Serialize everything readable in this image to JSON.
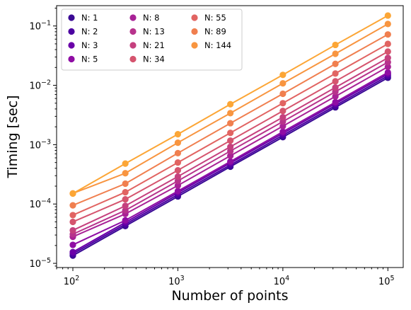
{
  "chart_data": {
    "type": "line",
    "title": "",
    "xlabel": "Number of points",
    "ylabel": "Timing [sec]",
    "xscale": "log",
    "yscale": "log",
    "xlim": [
      70,
      140000
    ],
    "ylim": [
      8.5e-06,
      0.22
    ],
    "grid": false,
    "legend_position": "top-left",
    "legend_columns": 3,
    "x": [
      100,
      316,
      1000,
      3162,
      10000,
      31623,
      100000
    ],
    "x_ticks": [
      {
        "value": 100,
        "base": "10",
        "exp": "2"
      },
      {
        "value": 1000,
        "base": "10",
        "exp": "3"
      },
      {
        "value": 10000,
        "base": "10",
        "exp": "4"
      },
      {
        "value": 100000,
        "base": "10",
        "exp": "5"
      }
    ],
    "y_ticks": [
      {
        "value": 1e-05,
        "base": "10",
        "exp": "−5"
      },
      {
        "value": 0.0001,
        "base": "10",
        "exp": "−4"
      },
      {
        "value": 0.001,
        "base": "10",
        "exp": "−3"
      },
      {
        "value": 0.01,
        "base": "10",
        "exp": "−2"
      },
      {
        "value": 0.1,
        "base": "10",
        "exp": "−1"
      }
    ],
    "series": [
      {
        "name": "N: 1",
        "color": "#3a0a94",
        "values": [
          1.35e-05,
          4.25e-05,
          0.000134,
          0.000425,
          0.00134,
          0.00425,
          0.0134
        ]
      },
      {
        "name": "N: 2",
        "color": "#4c02a1",
        "values": [
          1.45e-05,
          4.55e-05,
          0.000144,
          0.000455,
          0.00144,
          0.00455,
          0.0144
        ]
      },
      {
        "name": "N: 3",
        "color": "#6a00a8",
        "values": [
          1.55e-05,
          4.9e-05,
          0.000155,
          0.00049,
          0.00155,
          0.0049,
          0.0155
        ]
      },
      {
        "name": "N: 5",
        "color": "#8f0da4",
        "values": [
          2.05e-05,
          5.3e-05,
          0.000165,
          0.00052,
          0.00165,
          0.0052,
          0.0165
        ]
      },
      {
        "name": "N: 8",
        "color": "#a82296",
        "values": [
          2.8e-05,
          6.8e-05,
          0.000205,
          0.00065,
          0.00205,
          0.0065,
          0.0205
        ]
      },
      {
        "name": "N: 13",
        "color": "#b7338c",
        "values": [
          3.1e-05,
          7.8e-05,
          0.000245,
          0.00078,
          0.00245,
          0.0078,
          0.0245
        ]
      },
      {
        "name": "N: 21",
        "color": "#c5407e",
        "values": [
          3.6e-05,
          9.3e-05,
          0.00029,
          0.00092,
          0.0029,
          0.0092,
          0.029
        ]
      },
      {
        "name": "N: 34",
        "color": "#d5546e",
        "values": [
          5e-05,
          0.00012,
          0.00037,
          0.00117,
          0.0037,
          0.0117,
          0.037
        ]
      },
      {
        "name": "N: 55",
        "color": "#e16462",
        "values": [
          6.5e-05,
          0.000158,
          0.0005,
          0.00158,
          0.005,
          0.0158,
          0.05
        ]
      },
      {
        "name": "N: 89",
        "color": "#f07f4f",
        "values": [
          9.5e-05,
          0.00022,
          0.00072,
          0.0023,
          0.0072,
          0.023,
          0.072
        ]
      },
      {
        "name": "N: 144",
        "color": "#f89540",
        "values": [
          0.000151,
          0.00033,
          0.00108,
          0.0034,
          0.0108,
          0.034,
          0.108
        ]
      },
      {
        "name": "",
        "color": "#fca636",
        "values": [
          0.00015,
          0.00048,
          0.0015,
          0.0048,
          0.015,
          0.048,
          0.15
        ]
      }
    ]
  }
}
